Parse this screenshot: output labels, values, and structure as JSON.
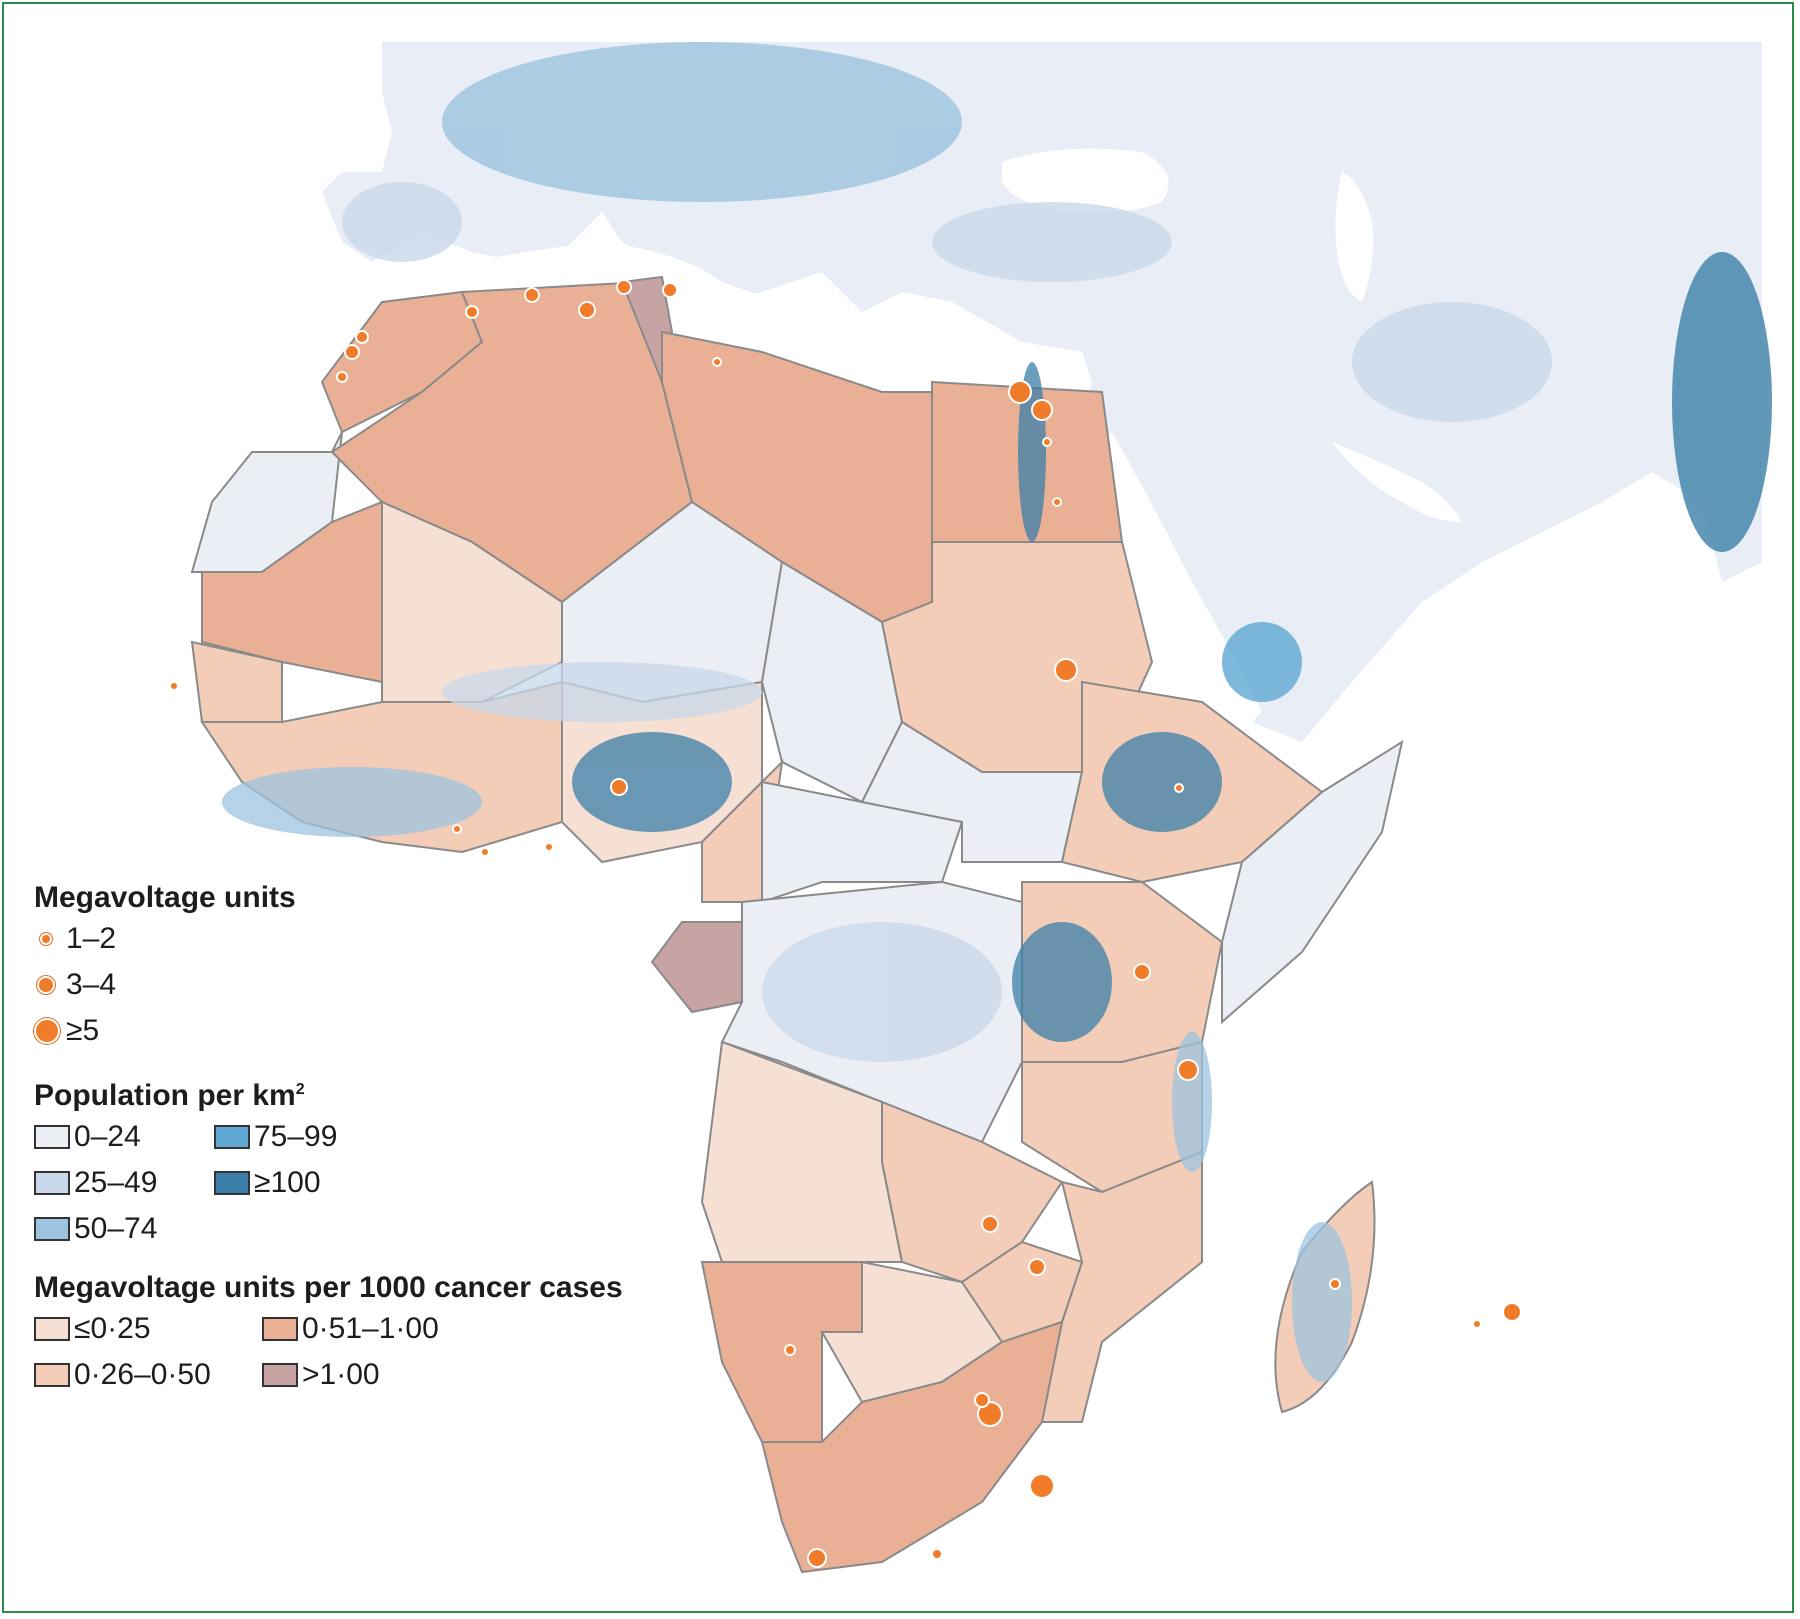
{
  "map": {
    "region": "Africa, Europe and Middle East",
    "colors": {
      "sea": "#ffffff",
      "land_low_density": "#eceef5",
      "pop_25_49": "#c9d8ea",
      "pop_50_74": "#9cc3e0",
      "pop_75_99": "#5ea8d3",
      "pop_100_plus": "#3b7fa8",
      "ratio_low": "#f6e0d3",
      "ratio_0_26_0_50": "#f3cdb7",
      "ratio_0_51_1_00": "#eab096",
      "ratio_above_1": "#c7a3a3",
      "megavoltage_marker": "#f07c2a",
      "border": "#8a8a8a"
    }
  },
  "legend": {
    "megavoltage": {
      "title": "Megavoltage units",
      "items": [
        {
          "label": "1–2",
          "size": "small"
        },
        {
          "label": "3–4",
          "size": "medium"
        },
        {
          "label": "≥5",
          "size": "large"
        }
      ]
    },
    "population": {
      "title": "Population per km",
      "title_sup": "2",
      "items": [
        {
          "label": "0–24",
          "color": "#eceef5"
        },
        {
          "label": "75–99",
          "color": "#5ea8d3"
        },
        {
          "label": "25–49",
          "color": "#c9d8ea"
        },
        {
          "label": "≥100",
          "color": "#3b7fa8"
        },
        {
          "label": "50–74",
          "color": "#9cc3e0"
        }
      ]
    },
    "ratio": {
      "title": "Megavoltage units per 1000 cancer cases",
      "items": [
        {
          "label": "≤0·25",
          "color": "#f6e0d3"
        },
        {
          "label": "0·51–1·00",
          "color": "#eab096"
        },
        {
          "label": "0·26–0·50",
          "color": "#f3cdb7"
        },
        {
          "label": ">1·00",
          "color": "#c7a3a3"
        }
      ]
    }
  }
}
